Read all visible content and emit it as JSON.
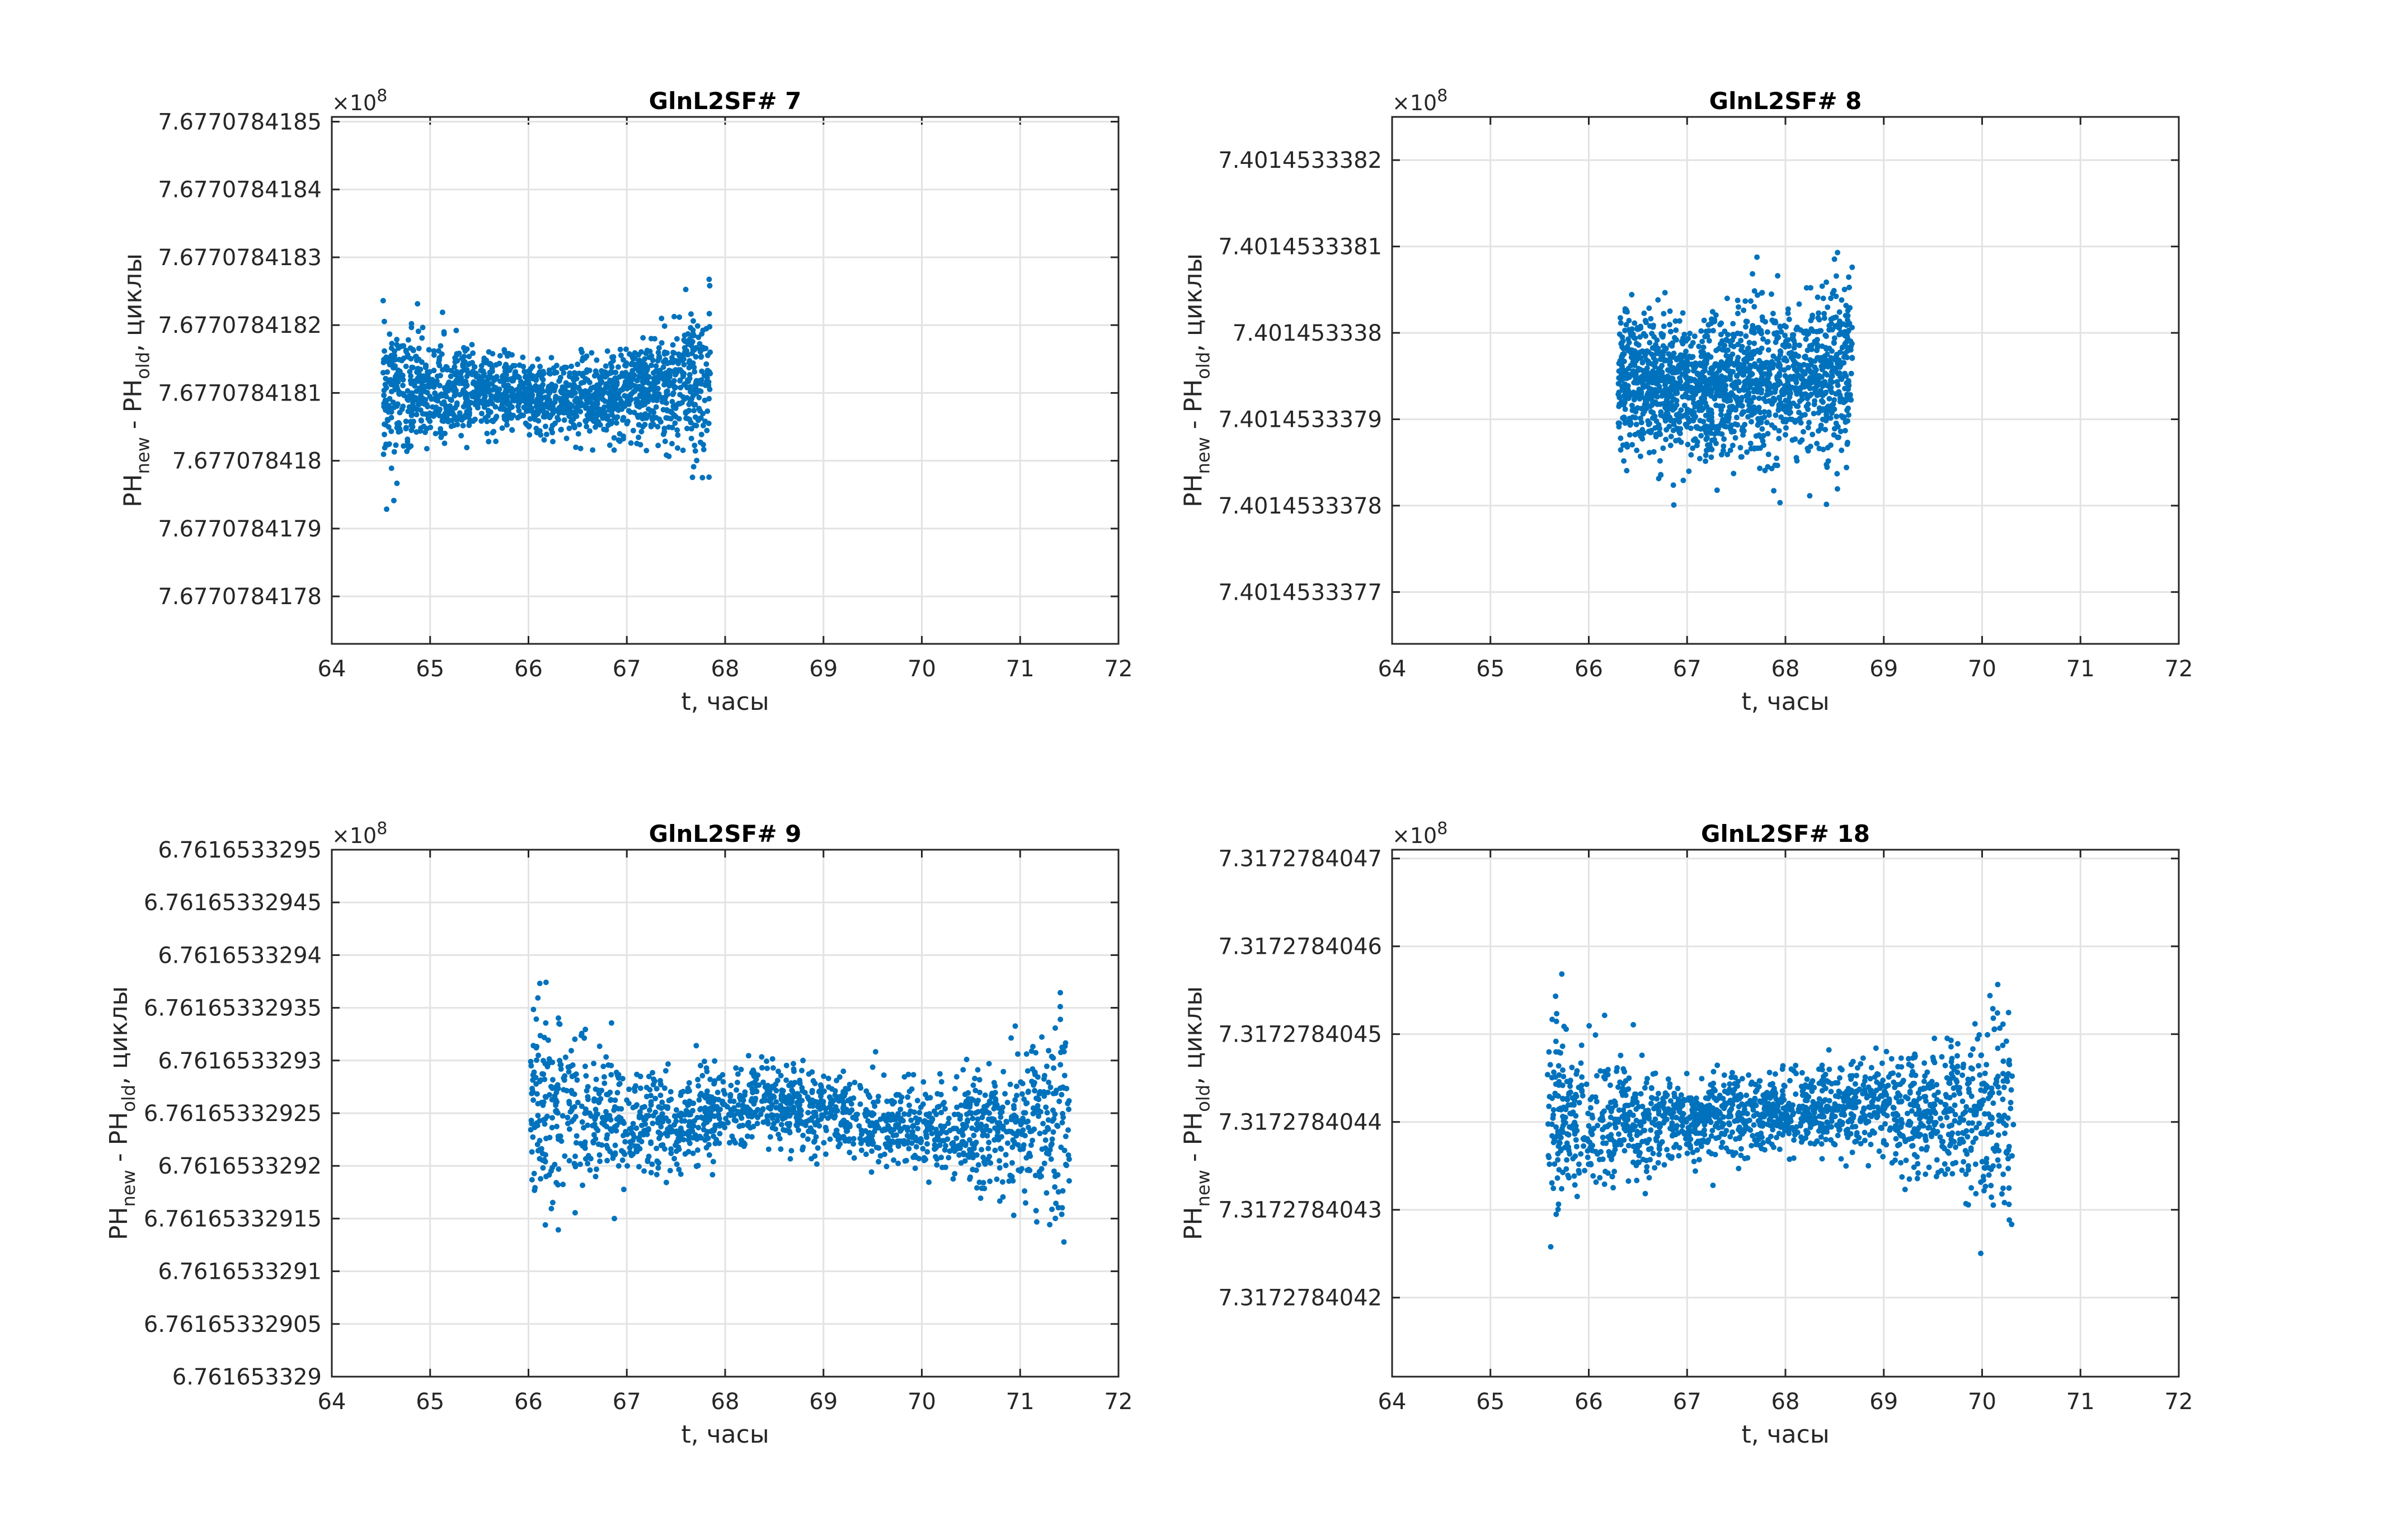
{
  "chart_data": [
    {
      "type": "scatter",
      "title": "GlnL2SF# 7",
      "xlabel": "t, часы",
      "ylabel": {
        "main": "PH",
        "sub1": "new",
        "mid": " - PH",
        "sub2": "old",
        "tail": ", циклы"
      },
      "exponent": {
        "base": "×10",
        "power": "8"
      },
      "xlim": [
        64,
        72
      ],
      "xticks": [
        "64",
        "65",
        "66",
        "67",
        "68",
        "69",
        "70",
        "71",
        "72"
      ],
      "ylim": [
        7.67707841773,
        7.677078418507
      ],
      "yticks": [
        "7.6770784178",
        "7.6770784179",
        "7.677078418",
        "7.6770784181",
        "7.6770784182",
        "7.6770784183",
        "7.6770784184",
        "7.6770784185"
      ],
      "grid": true,
      "color": "#0072BD",
      "series_profile": [
        [
          64.52,
          7.6770784181,
          5e-11
        ],
        [
          65.5,
          7.6770784181,
          3e-11
        ],
        [
          66.3,
          7.67707841809,
          2.4e-11
        ],
        [
          67.0,
          7.6770784181,
          3e-11
        ],
        [
          67.5,
          7.67707841811,
          4e-11
        ],
        [
          67.85,
          7.67707841812,
          7e-11
        ]
      ]
    },
    {
      "type": "scatter",
      "title": "GlnL2SF# 8",
      "xlabel": "t, часы",
      "ylabel": {
        "main": "PH",
        "sub1": "new",
        "mid": " - PH",
        "sub2": "old",
        "tail": ", циклы"
      },
      "exponent": {
        "base": "×10",
        "power": "8"
      },
      "xlim": [
        64,
        72
      ],
      "xticks": [
        "64",
        "65",
        "66",
        "67",
        "68",
        "69",
        "70",
        "71",
        "72"
      ],
      "ylim": [
        7.40145333764,
        7.40145333825
      ],
      "yticks": [
        "7.4014533377",
        "7.4014533378",
        "7.4014533379",
        "7.401453338",
        "7.4014533381",
        "7.4014533382"
      ],
      "grid": true,
      "color": "#0072BD",
      "series_profile": [
        [
          66.3,
          7.40145333795,
          4.5e-11
        ],
        [
          67.0,
          7.40145333793,
          3.8e-11
        ],
        [
          67.6,
          7.40145333794,
          4e-11
        ],
        [
          68.2,
          7.40145333795,
          4.5e-11
        ],
        [
          68.68,
          7.40145333796,
          5.5e-11
        ]
      ]
    },
    {
      "type": "scatter",
      "title": "GlnL2SF# 9",
      "xlabel": "t, часы",
      "ylabel": {
        "main": "PH",
        "sub1": "new",
        "mid": " - PH",
        "sub2": "old",
        "tail": ", циклы"
      },
      "exponent": {
        "base": "×10",
        "power": "8"
      },
      "xlim": [
        64,
        72
      ],
      "xticks": [
        "64",
        "65",
        "66",
        "67",
        "68",
        "69",
        "70",
        "71",
        "72"
      ],
      "ylim": [
        6.761653329,
        6.7616533295
      ],
      "yticks": [
        "6.761653329",
        "6.76165332905",
        "6.7616533291",
        "6.76165332915",
        "6.7616533292",
        "6.76165332925",
        "6.7616533293",
        "6.76165332935",
        "6.7616533294",
        "6.76165332945",
        "6.7616533295"
      ],
      "grid": true,
      "color": "#0072BD",
      "series_profile": [
        [
          66.02,
          6.76165332926,
          5.5e-11
        ],
        [
          66.6,
          6.76165332925,
          3.5e-11
        ],
        [
          67.5,
          6.76165332924,
          2.2e-11
        ],
        [
          68.5,
          6.76165332926,
          1.8e-11
        ],
        [
          69.5,
          6.76165332924,
          1.8e-11
        ],
        [
          70.3,
          6.76165332923,
          2.2e-11
        ],
        [
          71.0,
          6.76165332924,
          3.5e-11
        ],
        [
          71.5,
          6.76165332925,
          5.5e-11
        ]
      ]
    },
    {
      "type": "scatter",
      "title": "GlnL2SF# 18",
      "xlabel": "t, часы",
      "ylabel": {
        "main": "PH",
        "sub1": "new",
        "mid": " - PH",
        "sub2": "old",
        "tail": ", циклы"
      },
      "exponent": {
        "base": "×10",
        "power": "8"
      },
      "xlim": [
        64,
        72
      ],
      "xticks": [
        "64",
        "65",
        "66",
        "67",
        "68",
        "69",
        "70",
        "71",
        "72"
      ],
      "ylim": [
        7.31727840411,
        7.31727840471
      ],
      "yticks": [
        "7.3172784042",
        "7.3172784043",
        "7.3172784044",
        "7.3172784045",
        "7.3172784046",
        "7.3172784047"
      ],
      "grid": true,
      "color": "#0072BD",
      "series_profile": [
        [
          65.58,
          7.31727840441,
          6e-11
        ],
        [
          66.2,
          7.3172784044,
          3.5e-11
        ],
        [
          67.0,
          7.3172784044,
          2.2e-11
        ],
        [
          68.0,
          7.31727840441,
          2.2e-11
        ],
        [
          68.8,
          7.31727840442,
          2.5e-11
        ],
        [
          69.5,
          7.31727840441,
          3.5e-11
        ],
        [
          70.32,
          7.3172784044,
          6.5e-11
        ]
      ]
    }
  ]
}
